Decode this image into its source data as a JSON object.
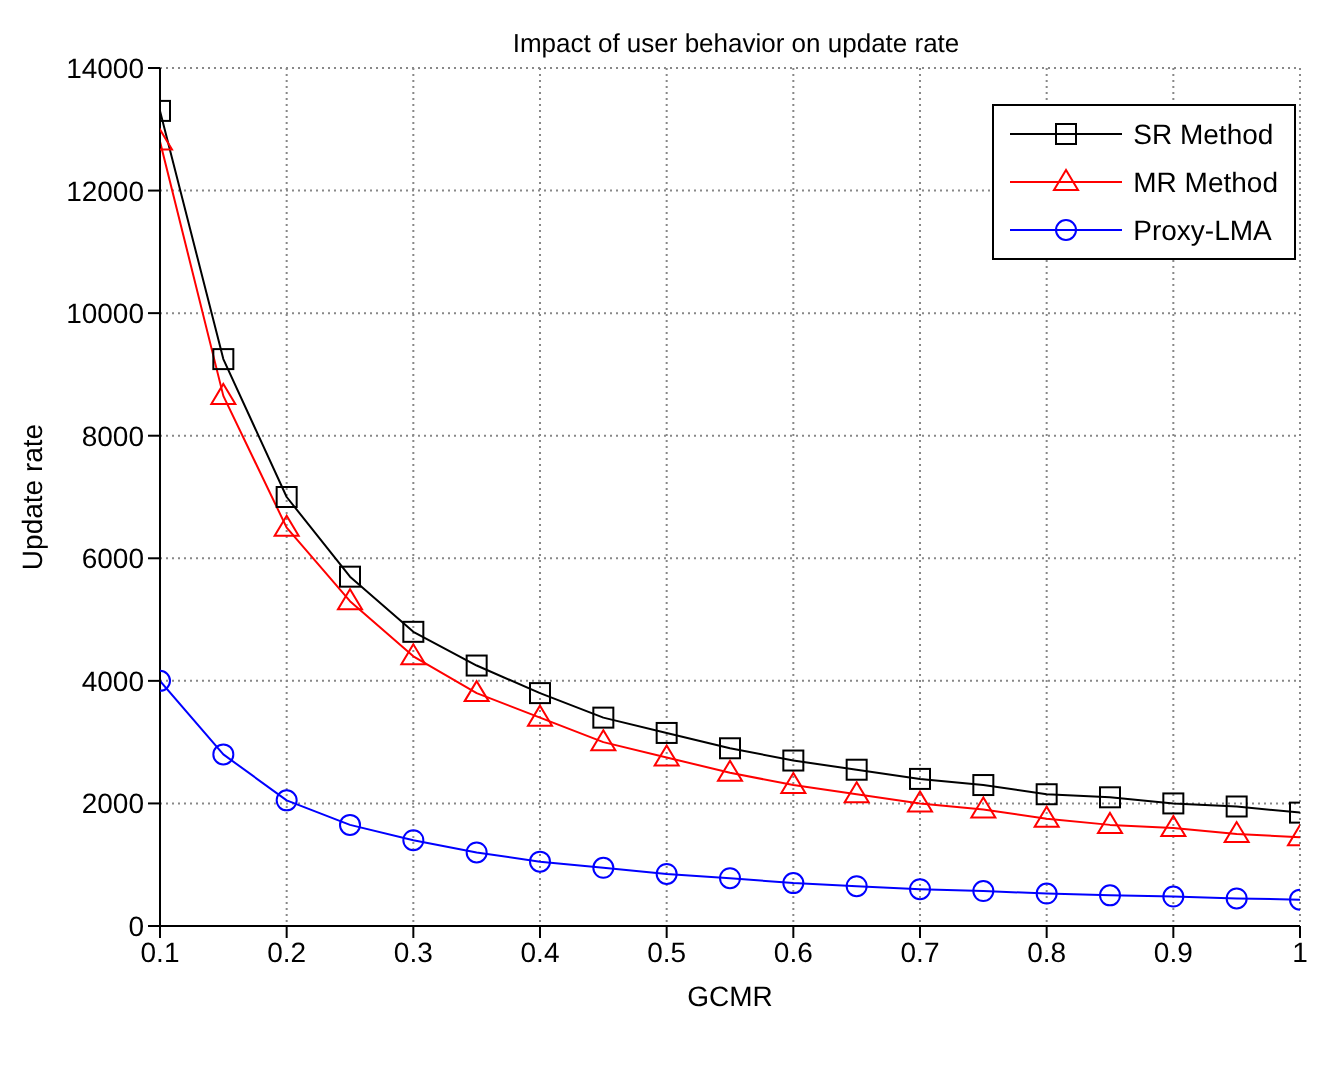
{
  "chart_data": {
    "type": "line",
    "title": "Impact of user behavior on update rate",
    "xlabel": "GCMR",
    "ylabel": "Update rate",
    "x": [
      0.1,
      0.15,
      0.2,
      0.25,
      0.3,
      0.35,
      0.4,
      0.45,
      0.5,
      0.55,
      0.6,
      0.65,
      0.7,
      0.75,
      0.8,
      0.85,
      0.9,
      0.95,
      1
    ],
    "series": [
      {
        "name": "SR Method",
        "color": "#000000",
        "marker": "square",
        "values": [
          13300,
          9250,
          7000,
          5700,
          4800,
          4250,
          3800,
          3400,
          3150,
          2900,
          2700,
          2550,
          2400,
          2300,
          2150,
          2100,
          2000,
          1950,
          1850
        ]
      },
      {
        "name": "MR Method",
        "color": "#ff0000",
        "marker": "triangle",
        "values": [
          12800,
          8650,
          6500,
          5300,
          4400,
          3800,
          3400,
          3000,
          2750,
          2500,
          2300,
          2150,
          2000,
          1900,
          1750,
          1650,
          1600,
          1500,
          1450
        ]
      },
      {
        "name": "Proxy-LMA",
        "color": "#0000ff",
        "marker": "circle",
        "values": [
          4000,
          2800,
          2050,
          1650,
          1400,
          1200,
          1050,
          950,
          850,
          780,
          700,
          650,
          600,
          570,
          530,
          500,
          480,
          450,
          430
        ]
      }
    ],
    "xlim": [
      0.1,
      1
    ],
    "xticks": [
      0.1,
      0.2,
      0.3,
      0.4,
      0.5,
      0.6,
      0.7,
      0.8,
      0.9,
      1
    ],
    "ylim": [
      0,
      14000
    ],
    "yticks": [
      0,
      2000,
      4000,
      6000,
      8000,
      10000,
      12000,
      14000
    ],
    "grid": true,
    "legend": "top right",
    "line_style": "solid"
  }
}
